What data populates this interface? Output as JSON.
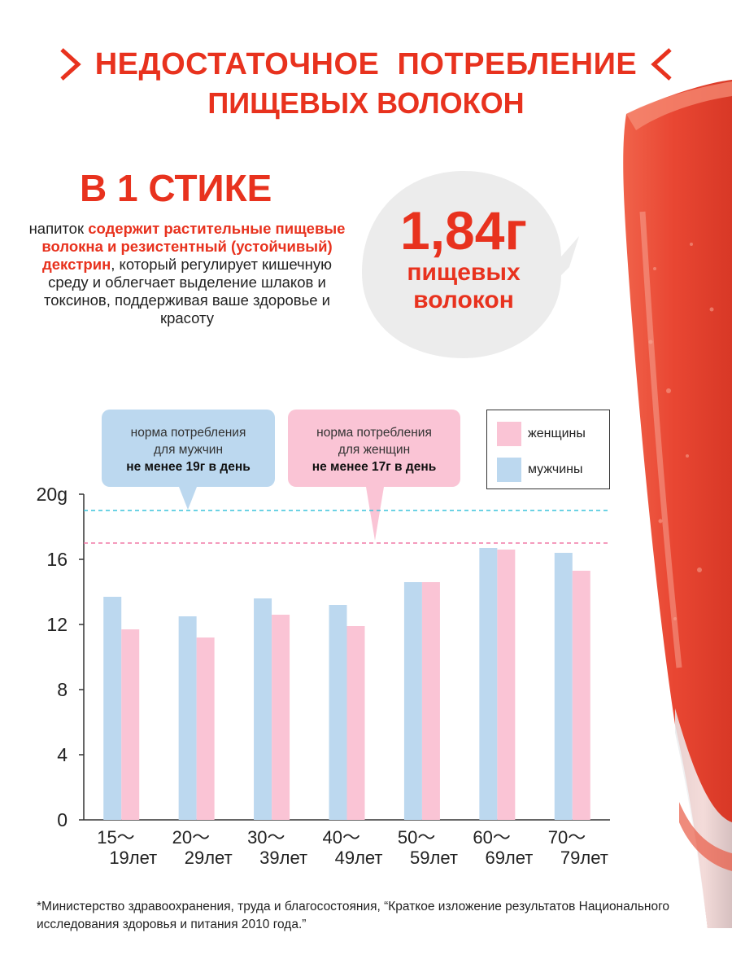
{
  "title": {
    "line1": "НЕДОСТАТОЧНОЕ  ПОТРЕБЛЕНИЕ",
    "line2": "ПИЩЕВЫХ ВОЛОКОН"
  },
  "stick_heading": "В 1 СТИКЕ",
  "description": {
    "part1": "напиток ",
    "highlight": "содержит растительные пищевые волокна и резистентный (устойчивый) декстрин",
    "part2": ", который регулирует кишечную среду и облегчает выделение шлаков и токсинов, поддерживая ваше здоровье и красоту"
  },
  "bubble": {
    "amount": "1,84г",
    "line1": "пищевых",
    "line2": "волокон"
  },
  "callouts": {
    "men": {
      "line1": "норма потребления",
      "line2": "для мужчин",
      "line3": "не менее 19г в день"
    },
    "women": {
      "line1": "норма потребления",
      "line2": "для женщин",
      "line3": "не менее 17г в день"
    }
  },
  "legend": {
    "women": "женщины",
    "men": "мужчины"
  },
  "colors": {
    "accent_red": "#e8321e",
    "men_bar": "#bcd8ef",
    "women_bar": "#fac4d5",
    "men_line": "#3cc3dc",
    "women_line": "#f07aa6"
  },
  "chart_data": {
    "type": "bar",
    "ylabel": "",
    "xlabel": "",
    "ylim": [
      0,
      20
    ],
    "y_ticks": [
      "0",
      "4",
      "8",
      "12",
      "16",
      "20g"
    ],
    "y_tick_values": [
      0,
      4,
      8,
      12,
      16,
      20
    ],
    "categories": [
      {
        "top": "15〜",
        "bottom": "19лет"
      },
      {
        "top": "20〜",
        "bottom": "29лет"
      },
      {
        "top": "30〜",
        "bottom": "39лет"
      },
      {
        "top": "40〜",
        "bottom": "49лет"
      },
      {
        "top": "50〜",
        "bottom": "59лет"
      },
      {
        "top": "60〜",
        "bottom": "69лет"
      },
      {
        "top": "70〜",
        "bottom": "79лет"
      }
    ],
    "series": [
      {
        "name": "мужчины",
        "values": [
          13.7,
          12.5,
          13.6,
          13.2,
          14.6,
          16.7,
          16.4
        ]
      },
      {
        "name": "женщины",
        "values": [
          11.7,
          11.2,
          12.6,
          11.9,
          14.6,
          16.6,
          15.3
        ]
      }
    ],
    "reference_lines": [
      {
        "value": 19,
        "series": "мужчины"
      },
      {
        "value": 17,
        "series": "женщины"
      }
    ]
  },
  "footnote": "*Министерство здравоохранения, труда и благосостояния, “Краткое изложение результатов Национального исследования здоровья и питания 2010 года.”"
}
